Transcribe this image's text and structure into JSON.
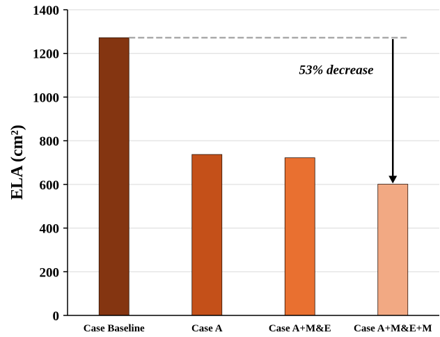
{
  "chart_data": {
    "type": "bar",
    "categories": [
      "Case Baseline",
      "Case A",
      "Case A+M&E",
      "Case A+M&E+M"
    ],
    "values": [
      1272,
      737,
      722,
      601
    ],
    "colors": [
      "#843511",
      "#c45019",
      "#e97030",
      "#f2a983"
    ],
    "title": "",
    "xlabel": "",
    "ylabel": "ELA (cm²)",
    "ylim": [
      0,
      1400
    ],
    "yticks": [
      0,
      200,
      400,
      600,
      800,
      1000,
      1200,
      1400
    ],
    "grid": true,
    "annotation": {
      "text": "53% decrease",
      "from_value": 1272,
      "to_value": 601,
      "reference_line_color": "#aaaaaa",
      "arrow_color": "#000000"
    }
  }
}
